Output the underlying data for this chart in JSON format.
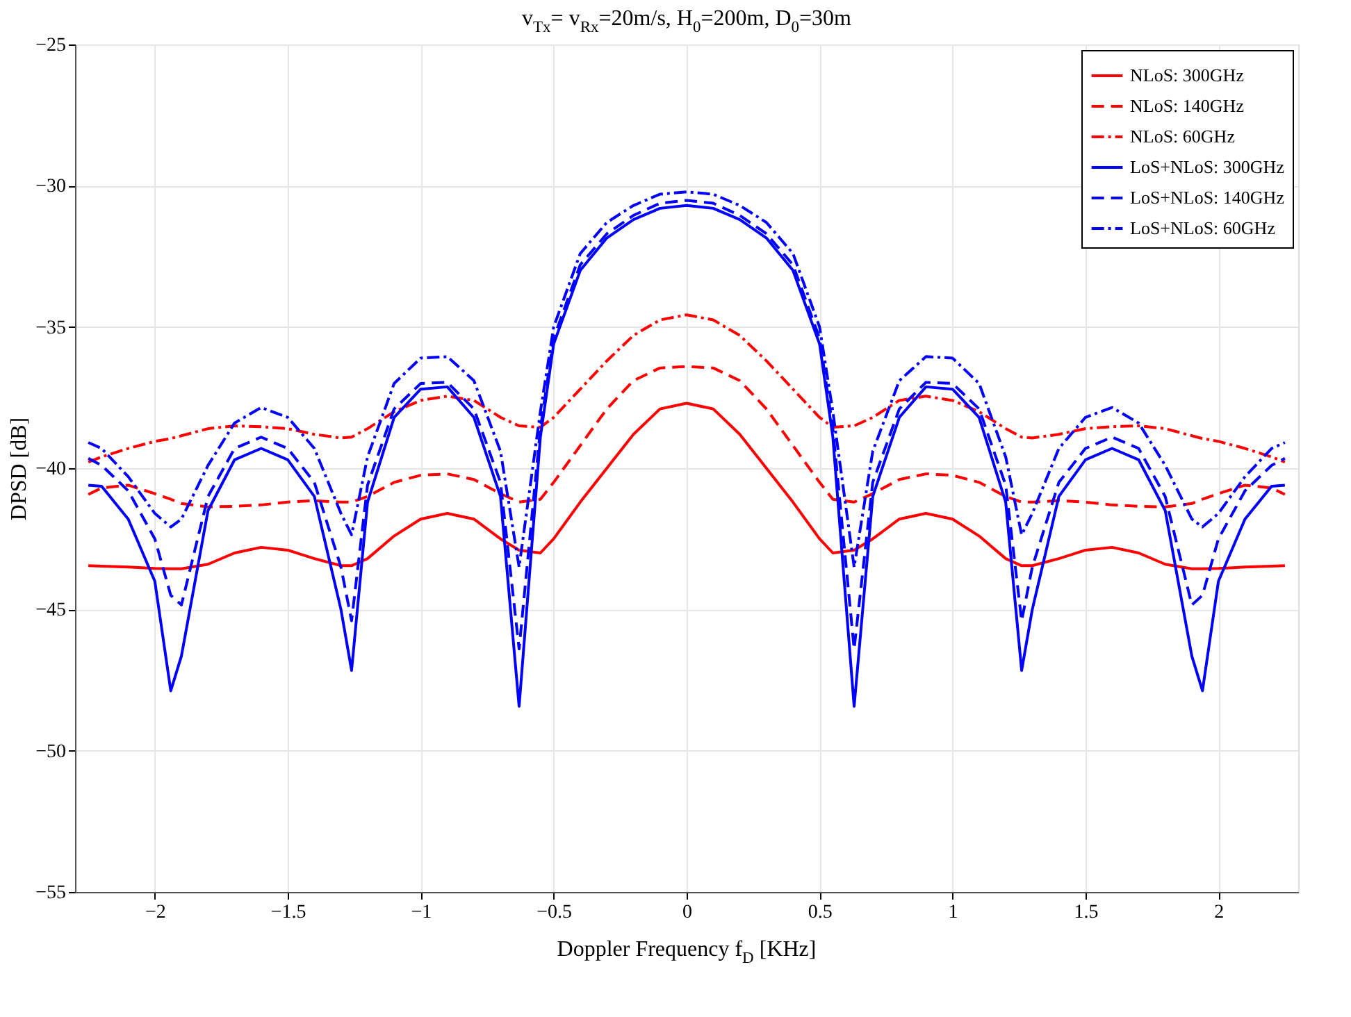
{
  "chart_data": {
    "type": "line",
    "title": "v$_{Tx}$= v$_{Rx}$=20m/s,  H$_{0}$=200m,  D$_{0}$=30m",
    "xlabel": "Doppler Frequency f$_{D}$ [KHz]",
    "ylabel": "DPSD [dB]",
    "x": [
      -2.25,
      -2.2,
      -2.1,
      -2.0,
      -1.94,
      -1.9,
      -1.8,
      -1.7,
      -1.6,
      -1.5,
      -1.4,
      -1.3,
      -1.26,
      -1.2,
      -1.1,
      -1.0,
      -0.9,
      -0.8,
      -0.7,
      -0.63,
      -0.55,
      -0.5,
      -0.4,
      -0.3,
      -0.2,
      -0.1,
      0,
      0.1,
      0.2,
      0.3,
      0.4,
      0.5,
      0.55,
      0.63,
      0.7,
      0.8,
      0.9,
      1.0,
      1.1,
      1.2,
      1.26,
      1.3,
      1.4,
      1.5,
      1.6,
      1.7,
      1.8,
      1.9,
      1.94,
      2.0,
      2.1,
      2.2,
      2.25
    ],
    "xlim": [
      -2.3,
      2.3
    ],
    "xticks": [
      -2,
      -1.5,
      -1,
      -0.5,
      0,
      0.5,
      1,
      1.5,
      2
    ],
    "ylim": [
      -55,
      -25
    ],
    "yticks": [
      -55,
      -50,
      -45,
      -40,
      -35,
      -30,
      -25
    ],
    "grid": true,
    "legend": "top right",
    "series": [
      {
        "name": "NLoS: 300GHz",
        "color": "#ff0000",
        "line_style": "solid",
        "values": [
          -43.45,
          -43.47,
          -43.5,
          -43.55,
          -43.56,
          -43.56,
          -43.4,
          -43.0,
          -42.8,
          -42.9,
          -43.2,
          -43.45,
          -43.45,
          -43.2,
          -42.4,
          -41.8,
          -41.6,
          -41.8,
          -42.5,
          -42.9,
          -43.0,
          -42.5,
          -41.2,
          -40.0,
          -38.8,
          -37.9,
          -37.7,
          -37.9,
          -38.8,
          -40.0,
          -41.2,
          -42.5,
          -43.0,
          -42.9,
          -42.5,
          -41.8,
          -41.6,
          -41.8,
          -42.4,
          -43.2,
          -43.45,
          -43.45,
          -43.2,
          -42.9,
          -42.8,
          -43.0,
          -43.4,
          -43.56,
          -43.56,
          -43.55,
          -43.5,
          -43.47,
          -43.45
        ]
      },
      {
        "name": "NLoS: 140GHz",
        "color": "#ff0000",
        "line_style": "dashed",
        "values": [
          -40.93,
          -40.7,
          -40.6,
          -40.9,
          -41.1,
          -41.25,
          -41.37,
          -41.35,
          -41.3,
          -41.2,
          -41.15,
          -41.2,
          -41.2,
          -41.0,
          -40.5,
          -40.25,
          -40.2,
          -40.4,
          -40.9,
          -41.2,
          -41.1,
          -40.5,
          -39.2,
          -37.9,
          -36.9,
          -36.45,
          -36.4,
          -36.45,
          -36.9,
          -37.9,
          -39.2,
          -40.5,
          -41.1,
          -41.2,
          -40.9,
          -40.4,
          -40.2,
          -40.25,
          -40.5,
          -41.0,
          -41.2,
          -41.2,
          -41.15,
          -41.2,
          -41.3,
          -41.35,
          -41.37,
          -41.25,
          -41.1,
          -40.9,
          -40.6,
          -40.7,
          -40.93
        ]
      },
      {
        "name": "NLoS: 60GHz",
        "color": "#ff0000",
        "line_style": "dashdot",
        "values": [
          -39.78,
          -39.6,
          -39.3,
          -39.05,
          -38.95,
          -38.85,
          -38.6,
          -38.5,
          -38.53,
          -38.6,
          -38.8,
          -38.93,
          -38.9,
          -38.6,
          -38.0,
          -37.6,
          -37.45,
          -37.6,
          -38.2,
          -38.5,
          -38.55,
          -38.2,
          -37.2,
          -36.2,
          -35.3,
          -34.75,
          -34.57,
          -34.75,
          -35.3,
          -36.2,
          -37.2,
          -38.2,
          -38.55,
          -38.5,
          -38.2,
          -37.6,
          -37.45,
          -37.6,
          -38.0,
          -38.6,
          -38.9,
          -38.93,
          -38.8,
          -38.6,
          -38.53,
          -38.5,
          -38.6,
          -38.85,
          -38.95,
          -39.05,
          -39.3,
          -39.6,
          -39.78
        ]
      },
      {
        "name": "LoS+NLoS: 300GHz",
        "color": "#0000ff",
        "line_style": "solid",
        "values": [
          -40.6,
          -40.64,
          -41.8,
          -44.0,
          -47.88,
          -46.65,
          -41.5,
          -39.7,
          -39.3,
          -39.7,
          -41.0,
          -45.0,
          -47.16,
          -41.2,
          -38.2,
          -37.2,
          -37.12,
          -38.2,
          -41.0,
          -48.43,
          -38.9,
          -35.6,
          -33.0,
          -31.85,
          -31.2,
          -30.8,
          -30.7,
          -30.8,
          -31.2,
          -31.85,
          -33.0,
          -35.6,
          -38.9,
          -48.43,
          -41.0,
          -38.2,
          -37.12,
          -37.2,
          -38.2,
          -41.2,
          -47.16,
          -45.0,
          -41.0,
          -39.7,
          -39.3,
          -39.7,
          -41.5,
          -46.65,
          -47.88,
          -44.0,
          -41.8,
          -40.64,
          -40.6
        ]
      },
      {
        "name": "LoS+NLoS: 140GHz",
        "color": "#0000ff",
        "line_style": "dashed",
        "values": [
          -39.65,
          -39.9,
          -40.8,
          -42.5,
          -44.5,
          -44.84,
          -41.0,
          -39.3,
          -38.9,
          -39.3,
          -40.5,
          -43.5,
          -45.4,
          -40.6,
          -37.9,
          -37.0,
          -36.96,
          -37.9,
          -40.5,
          -46.4,
          -38.6,
          -35.4,
          -32.8,
          -31.7,
          -31.05,
          -30.62,
          -30.52,
          -30.62,
          -31.05,
          -31.7,
          -32.8,
          -35.4,
          -38.6,
          -46.4,
          -40.5,
          -37.9,
          -36.96,
          -37.0,
          -37.9,
          -40.6,
          -45.4,
          -43.5,
          -40.5,
          -39.3,
          -38.9,
          -39.3,
          -41.0,
          -44.84,
          -44.5,
          -42.5,
          -40.8,
          -39.9,
          -39.65
        ]
      },
      {
        "name": "LoS+NLoS: 60GHz",
        "color": "#0000ff",
        "line_style": "dashdot",
        "values": [
          -39.09,
          -39.3,
          -40.3,
          -41.6,
          -42.08,
          -41.8,
          -39.9,
          -38.4,
          -37.85,
          -38.2,
          -39.3,
          -41.6,
          -42.36,
          -39.6,
          -37.0,
          -36.1,
          -36.05,
          -36.9,
          -39.4,
          -43.5,
          -38.0,
          -35.0,
          -32.4,
          -31.3,
          -30.7,
          -30.3,
          -30.22,
          -30.3,
          -30.7,
          -31.3,
          -32.4,
          -35.0,
          -38.0,
          -43.5,
          -39.4,
          -36.9,
          -36.05,
          -36.1,
          -37.0,
          -39.6,
          -42.36,
          -41.6,
          -39.3,
          -38.2,
          -37.85,
          -38.4,
          -39.9,
          -41.8,
          -42.08,
          -41.6,
          -40.3,
          -39.3,
          -39.09
        ]
      }
    ]
  }
}
